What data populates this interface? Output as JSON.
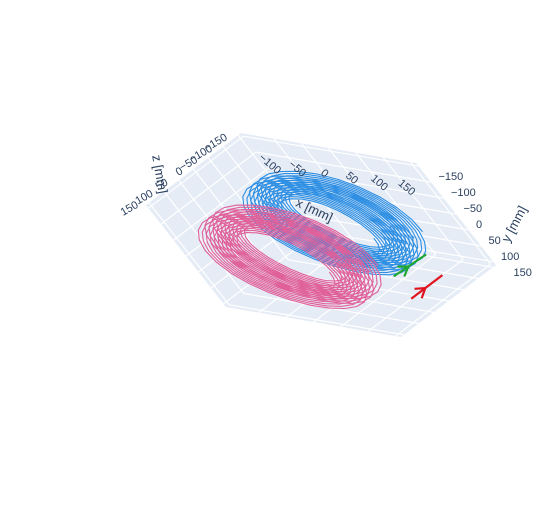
{
  "chart_data": {
    "type": "scatter3d",
    "title": "",
    "axes": {
      "x": {
        "label": "x [mm]",
        "range": [
          -160,
          160
        ],
        "ticks": [
          -100,
          -50,
          0,
          50,
          100,
          150
        ],
        "tick_labels": [
          "−100",
          "−50",
          "0",
          "50",
          "100",
          "150"
        ]
      },
      "y": {
        "label": "y [mm]",
        "range": [
          -160,
          160
        ],
        "ticks": [
          -150,
          -100,
          -50,
          0,
          50,
          100,
          150
        ],
        "tick_labels": [
          "−150",
          "−100",
          "−50",
          "0",
          "50",
          "100",
          "150"
        ]
      },
      "z": {
        "label": "z [mm]",
        "range": [
          -160,
          160
        ],
        "ticks": [
          -150,
          -100,
          -50,
          0,
          50,
          100,
          150
        ],
        "tick_labels": [
          "−150",
          "−100",
          "−50",
          "0",
          "50",
          "100",
          "150"
        ]
      }
    },
    "series": [
      {
        "kind": "coil",
        "color": "#2e8fe3",
        "r_inner": 85,
        "r_outer": 145,
        "z_min": -75,
        "z_max": -25,
        "turns": 9,
        "layers": 3
      },
      {
        "kind": "coil",
        "color": "#e0609a",
        "r_inner": 85,
        "r_outer": 145,
        "z_min": 75,
        "z_max": 125,
        "turns": 9,
        "layers": 3
      },
      {
        "kind": "vector",
        "color": "#1fa831",
        "points": [
          [
            130,
            60,
            45
          ],
          [
            150,
            45,
            -40
          ]
        ]
      },
      {
        "kind": "vector",
        "color": "#e0141e",
        "points": [
          [
            150,
            110,
            65
          ],
          [
            150,
            110,
            -40
          ]
        ]
      }
    ],
    "background": "#e5ecf6",
    "grid": true
  }
}
